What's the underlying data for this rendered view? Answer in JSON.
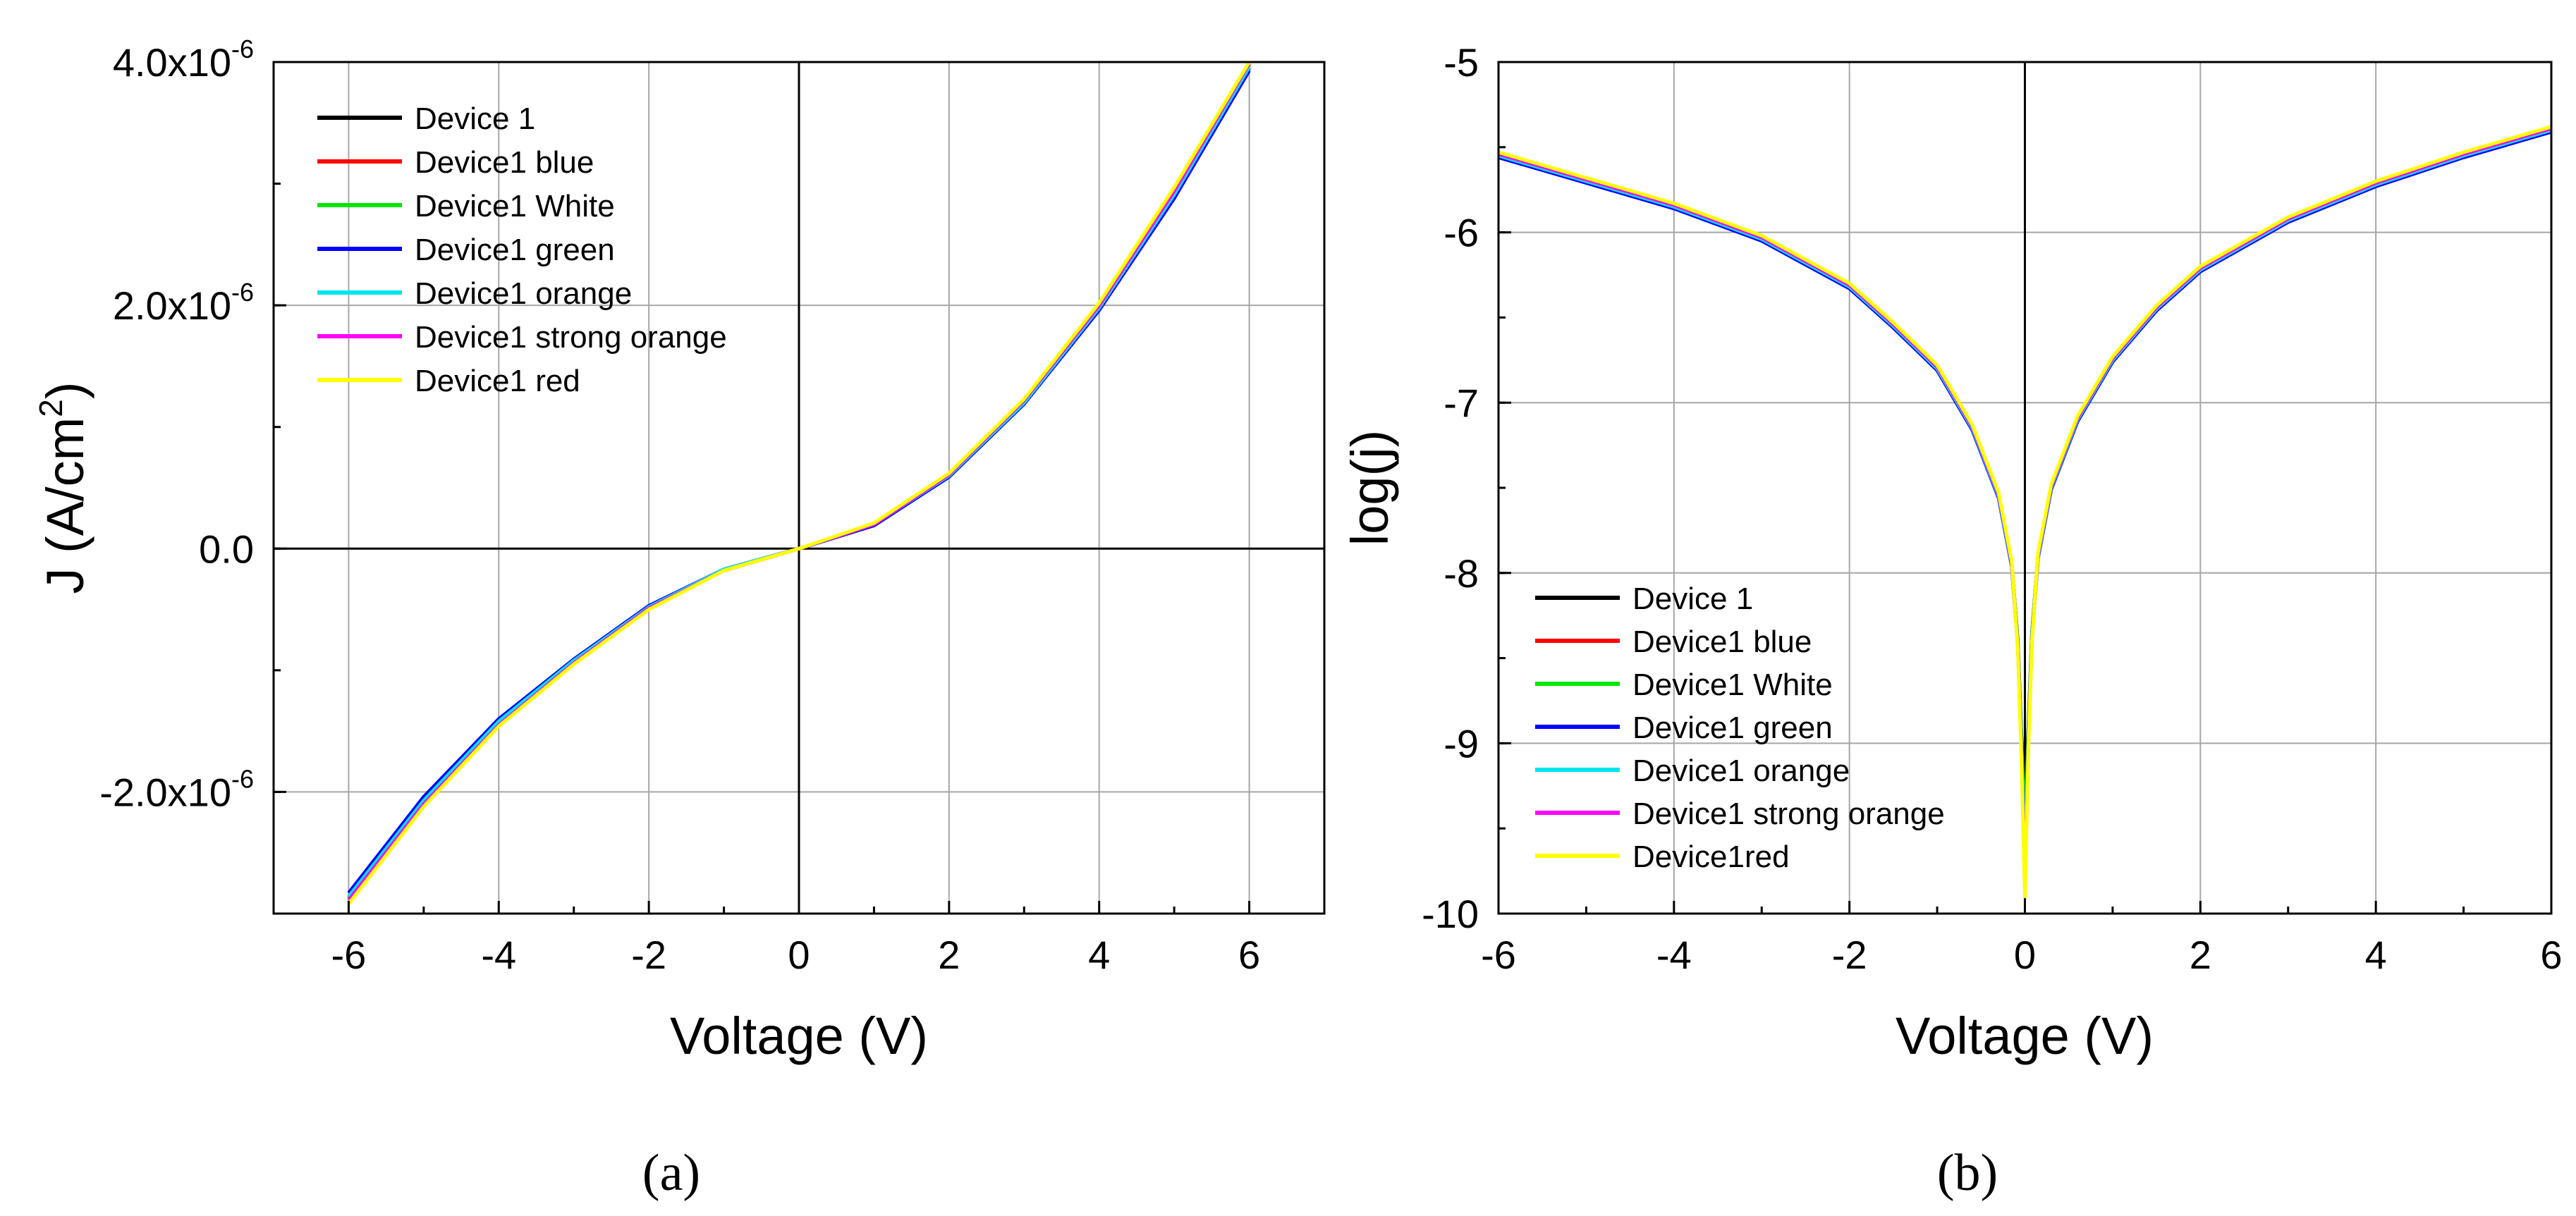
{
  "colors": {
    "device_1": "#000000",
    "blue": "#ff0000",
    "white": "#00e600",
    "green": "#0000ff",
    "orange": "#00e5ee",
    "strong_orange": "#ff00ff",
    "red": "#ffff00"
  },
  "chart_data": [
    {
      "type": "line",
      "panel": "(a)",
      "xlabel": "Voltage (V)",
      "ylabel": "J (A/cm²)",
      "ylabel_base": "J (A/cm",
      "ylabel_sup": "2",
      "ylabel_tail": ")",
      "xlim": [
        -7,
        7
      ],
      "ylim": [
        -3e-06,
        4e-06
      ],
      "grid": true,
      "legend_position": "top-left",
      "xticks": [
        -6,
        -4,
        -2,
        0,
        2,
        4,
        6
      ],
      "xtick_labels": [
        "-6",
        "-4",
        "-2",
        "0",
        "2",
        "4",
        "6"
      ],
      "yticks": [
        -2e-06,
        0,
        2e-06,
        4e-06
      ],
      "ytick_labels": [
        {
          "base": "-2.0x10",
          "exp": "-6"
        },
        {
          "base": "0.0",
          "exp": ""
        },
        {
          "base": "2.0x10",
          "exp": "-6"
        },
        {
          "base": "4.0x10",
          "exp": "-6"
        }
      ],
      "x": [
        -6,
        -5,
        -4,
        -3,
        -2,
        -1,
        0,
        1,
        2,
        3,
        4,
        5,
        6
      ],
      "series": [
        {
          "name": "Device 1",
          "color": "#000000",
          "values": [
            -2.86e-06,
            -2.07e-06,
            -1.42e-06,
            -9.2e-07,
            -4.8e-07,
            -1.7e-07,
            0,
            2e-07,
            6e-07,
            1.2e-06,
            1.97e-06,
            2.9e-06,
            3.95e-06
          ]
        },
        {
          "name": "Device1 blue",
          "color": "#ff0000",
          "values": [
            -2.88e-06,
            -2.09e-06,
            -1.44e-06,
            -9.4e-07,
            -4.9e-07,
            -1.8e-07,
            0,
            2e-07,
            6.1e-07,
            1.21e-06,
            1.99e-06,
            2.93e-06,
            3.98e-06
          ]
        },
        {
          "name": "Device1 White",
          "color": "#00e600",
          "values": [
            -2.87e-06,
            -2.08e-06,
            -1.43e-06,
            -9.3e-07,
            -4.8e-07,
            -1.7e-07,
            0,
            2e-07,
            6e-07,
            1.2e-06,
            1.98e-06,
            2.92e-06,
            3.97e-06
          ]
        },
        {
          "name": "Device1 green",
          "color": "#0000ff",
          "values": [
            -2.83e-06,
            -2.04e-06,
            -1.4e-06,
            -9.1e-07,
            -4.7e-07,
            -1.7e-07,
            0,
            1.9e-07,
            5.9e-07,
            1.19e-06,
            1.96e-06,
            2.88e-06,
            3.93e-06
          ]
        },
        {
          "name": "Device1 orange",
          "color": "#00e5ee",
          "values": [
            -2.86e-06,
            -2.07e-06,
            -1.42e-06,
            -9.2e-07,
            -4.8e-07,
            -1.7e-07,
            0,
            2e-07,
            6e-07,
            1.2e-06,
            1.98e-06,
            2.91e-06,
            3.96e-06
          ]
        },
        {
          "name": "Device1 strong orange",
          "color": "#ff00ff",
          "values": [
            -2.89e-06,
            -2.1e-06,
            -1.45e-06,
            -9.4e-07,
            -4.9e-07,
            -1.8e-07,
            0,
            2e-07,
            6.1e-07,
            1.22e-06,
            2e-06,
            2.94e-06,
            3.99e-06
          ]
        },
        {
          "name": "Device1 red",
          "color": "#ffff00",
          "values": [
            -2.92e-06,
            -2.12e-06,
            -1.46e-06,
            -9.5e-07,
            -5e-07,
            -1.8e-07,
            0,
            2.1e-07,
            6.2e-07,
            1.23e-06,
            2.02e-06,
            2.97e-06,
            4.01e-06
          ]
        }
      ]
    },
    {
      "type": "line",
      "panel": "(b)",
      "xlabel": "Voltage (V)",
      "ylabel": "log(j)",
      "xlim": [
        -6,
        6
      ],
      "ylim": [
        -10,
        -5
      ],
      "grid": true,
      "legend_position": "bottom-left",
      "xticks": [
        -6,
        -4,
        -2,
        0,
        2,
        4,
        6
      ],
      "xtick_labels": [
        "-6",
        "-4",
        "-2",
        "0",
        "2",
        "4",
        "6"
      ],
      "yticks": [
        -10,
        -9,
        -8,
        -7,
        -6,
        -5
      ],
      "ytick_labels": [
        "-10",
        "-9",
        "-8",
        "-7",
        "-6",
        "-5"
      ],
      "x": [
        -6,
        -5,
        -4,
        -3,
        -2,
        -1.5,
        -1,
        -0.6,
        -0.3,
        -0.15,
        -0.08,
        -0.04,
        0,
        0.04,
        0.08,
        0.15,
        0.3,
        0.6,
        1,
        1.5,
        2,
        3,
        4,
        5,
        6
      ],
      "series": [
        {
          "name": "Device 1",
          "color": "#000000",
          "values": [
            -5.55,
            -5.7,
            -5.85,
            -6.04,
            -6.32,
            -6.55,
            -6.8,
            -7.15,
            -7.55,
            -7.95,
            -8.4,
            -8.95,
            -9.3,
            -8.9,
            -8.35,
            -7.9,
            -7.5,
            -7.1,
            -6.75,
            -6.45,
            -6.22,
            -5.93,
            -5.72,
            -5.55,
            -5.4
          ]
        },
        {
          "name": "Device1 blue",
          "color": "#ff0000",
          "values": [
            -5.54,
            -5.69,
            -5.84,
            -6.03,
            -6.31,
            -6.54,
            -6.79,
            -7.14,
            -7.54,
            -7.94,
            -8.42,
            -9.0,
            -9.6,
            -8.95,
            -8.37,
            -7.89,
            -7.49,
            -7.09,
            -6.74,
            -6.44,
            -6.21,
            -5.92,
            -5.71,
            -5.54,
            -5.39
          ]
        },
        {
          "name": "Device1 White",
          "color": "#00e600",
          "values": [
            -5.55,
            -5.7,
            -5.85,
            -6.04,
            -6.32,
            -6.55,
            -6.8,
            -7.15,
            -7.55,
            -7.95,
            -8.41,
            -8.98,
            -9.5,
            -8.93,
            -8.36,
            -7.9,
            -7.5,
            -7.1,
            -6.75,
            -6.45,
            -6.22,
            -5.93,
            -5.72,
            -5.55,
            -5.4
          ]
        },
        {
          "name": "Device1 green",
          "color": "#0000ff",
          "values": [
            -5.56,
            -5.71,
            -5.86,
            -6.05,
            -6.33,
            -6.56,
            -6.81,
            -7.16,
            -7.56,
            -7.96,
            -8.43,
            -9.02,
            -9.7,
            -8.97,
            -8.38,
            -7.91,
            -7.51,
            -7.11,
            -6.76,
            -6.46,
            -6.23,
            -5.94,
            -5.73,
            -5.56,
            -5.41
          ]
        },
        {
          "name": "Device1 orange",
          "color": "#00e5ee",
          "values": [
            -5.55,
            -5.7,
            -5.85,
            -6.04,
            -6.32,
            -6.55,
            -6.8,
            -7.15,
            -7.55,
            -7.95,
            -8.42,
            -9.01,
            -9.75,
            -8.96,
            -8.37,
            -7.9,
            -7.5,
            -7.1,
            -6.75,
            -6.45,
            -6.22,
            -5.93,
            -5.72,
            -5.55,
            -5.4
          ]
        },
        {
          "name": "Device1 strong orange",
          "color": "#ff00ff",
          "values": [
            -5.54,
            -5.69,
            -5.84,
            -6.03,
            -6.31,
            -6.54,
            -6.79,
            -7.14,
            -7.54,
            -7.94,
            -8.44,
            -9.05,
            -9.85,
            -9.0,
            -8.39,
            -7.89,
            -7.49,
            -7.09,
            -6.74,
            -6.44,
            -6.21,
            -5.92,
            -5.71,
            -5.54,
            -5.39
          ]
        },
        {
          "name": "Device1red",
          "color": "#ffff00",
          "values": [
            -5.53,
            -5.68,
            -5.83,
            -6.02,
            -6.3,
            -6.53,
            -6.78,
            -7.13,
            -7.53,
            -7.93,
            -8.45,
            -9.08,
            -9.9,
            -9.02,
            -8.4,
            -7.88,
            -7.48,
            -7.08,
            -6.73,
            -6.43,
            -6.2,
            -5.91,
            -5.7,
            -5.53,
            -5.38
          ]
        }
      ]
    }
  ]
}
